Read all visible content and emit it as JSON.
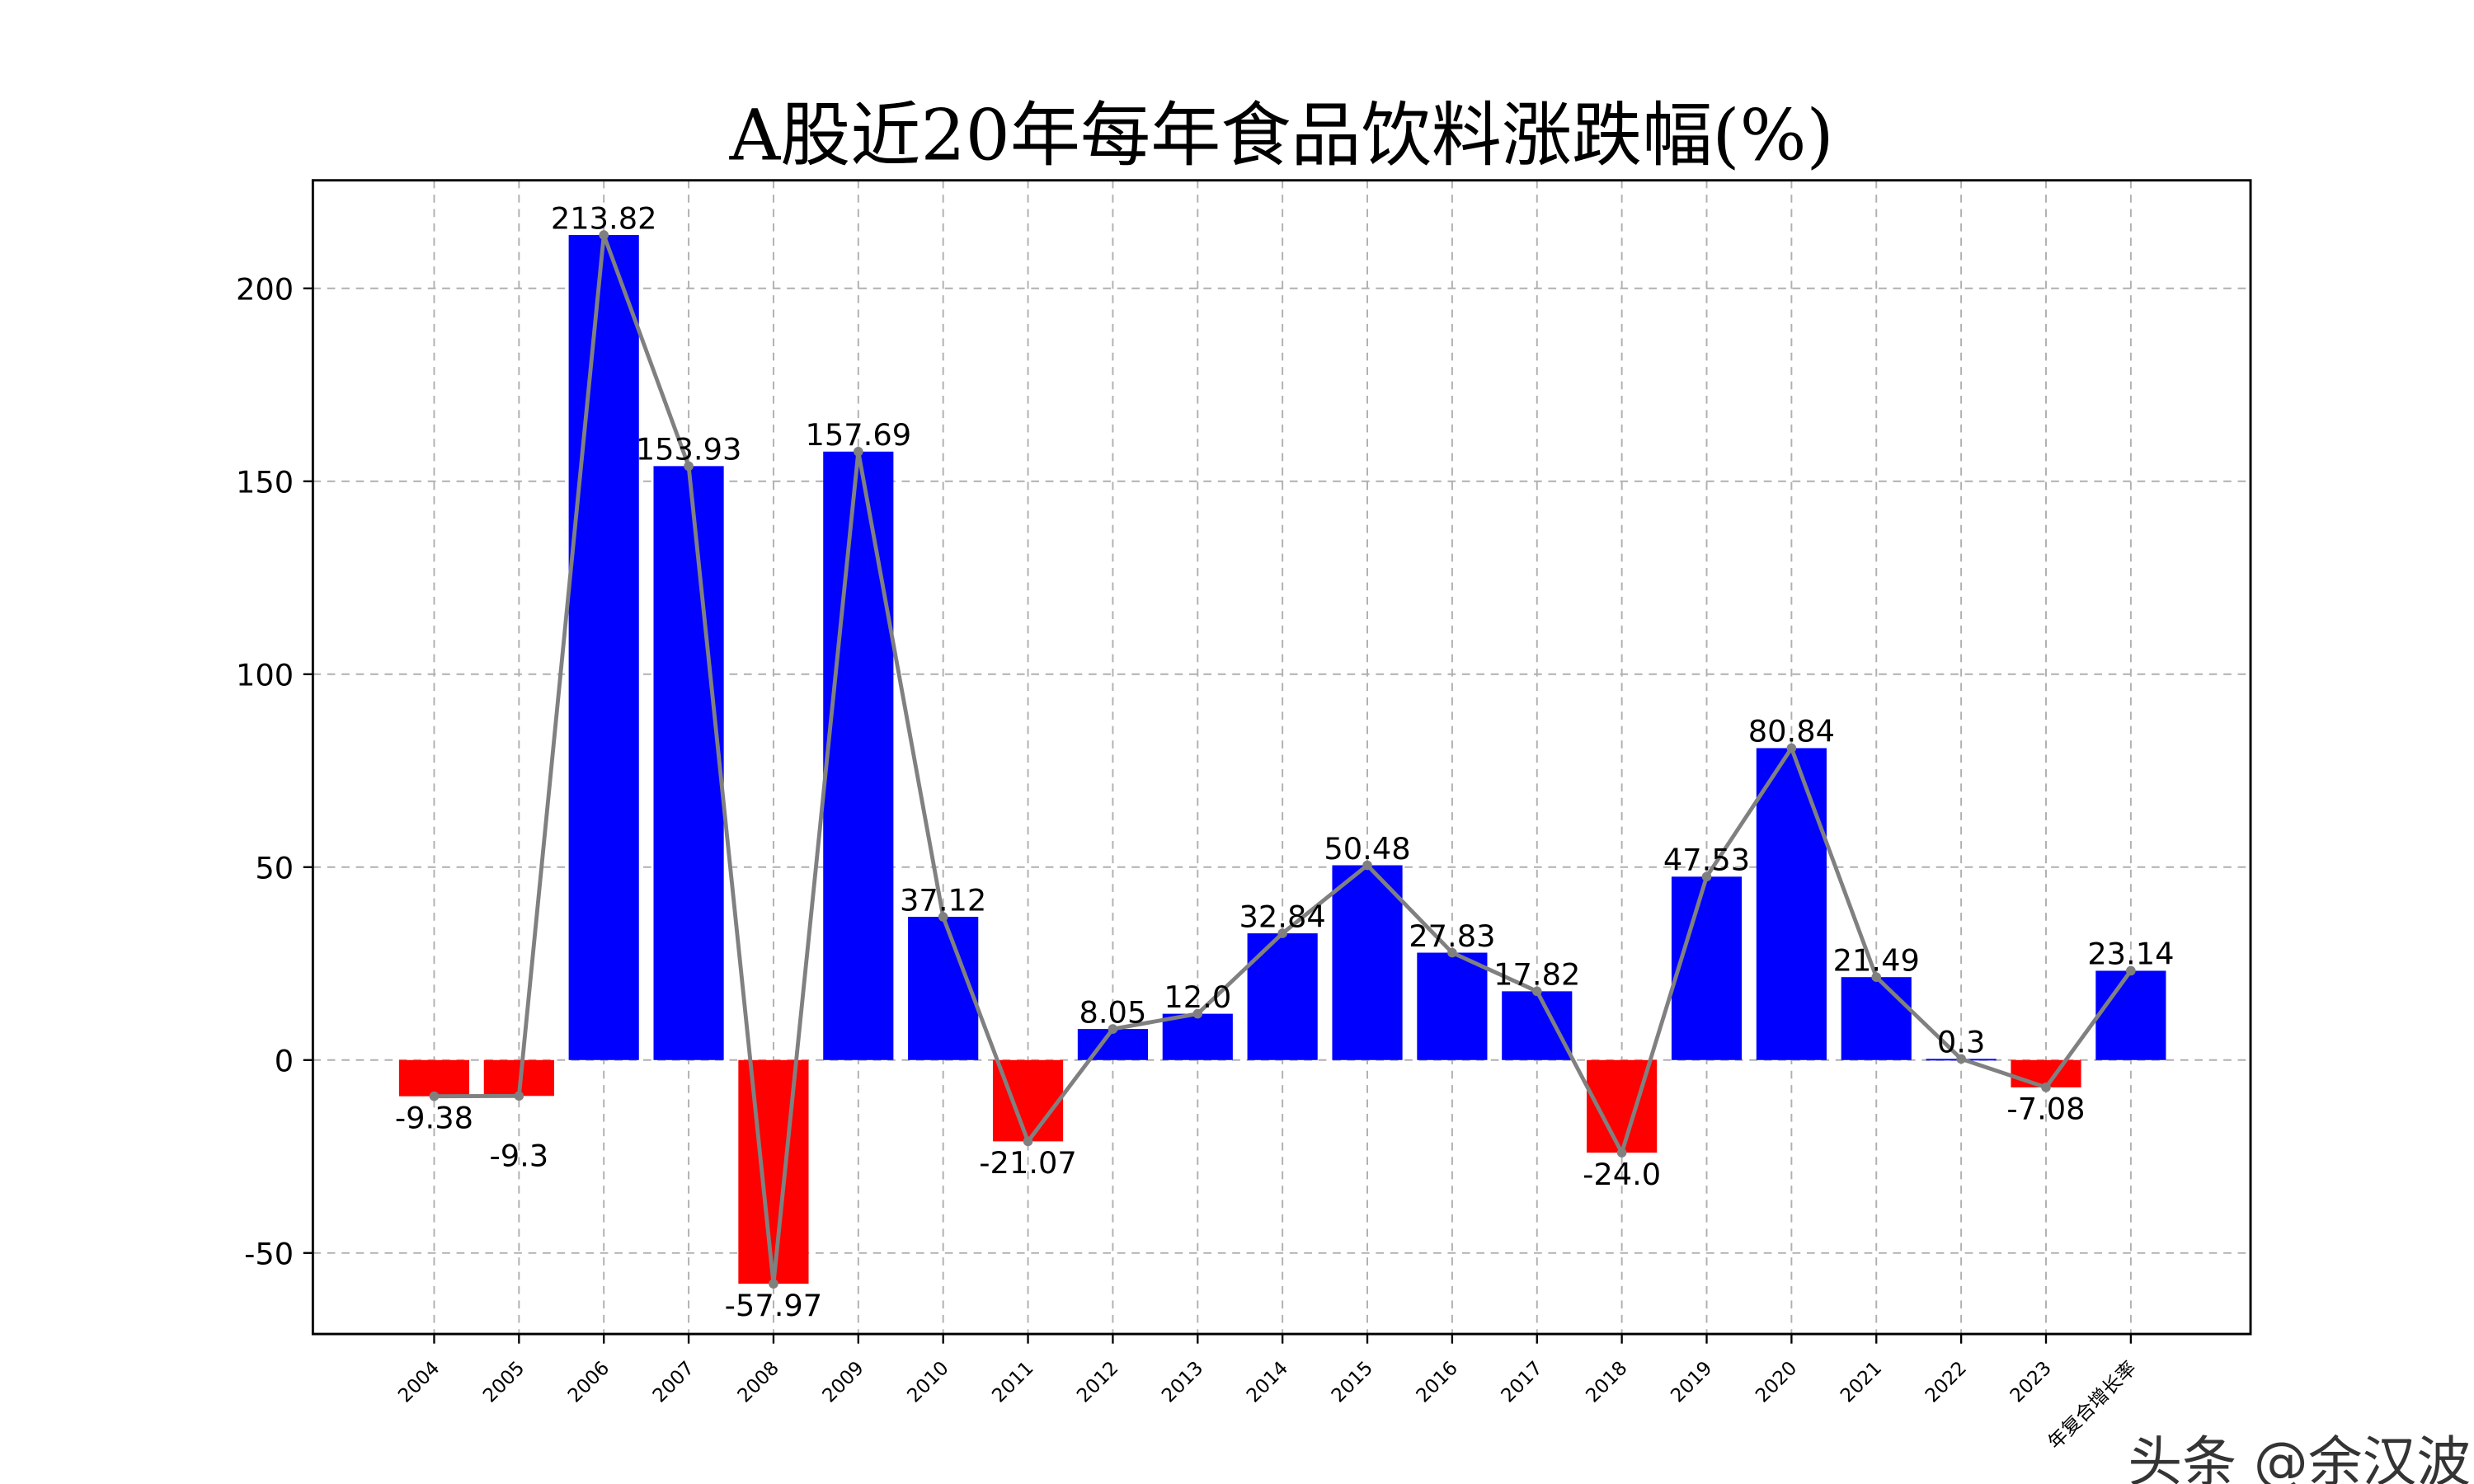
{
  "chart_data": {
    "type": "bar",
    "title": "A股近20年每年食品饮料涨跌幅(%)",
    "xlabel": "",
    "ylabel": "",
    "categories": [
      "2004",
      "2005",
      "2006",
      "2007",
      "2008",
      "2009",
      "2010",
      "2011",
      "2012",
      "2013",
      "2014",
      "2015",
      "2016",
      "2017",
      "2018",
      "2019",
      "2020",
      "2021",
      "2022",
      "2023",
      "年复合增长率"
    ],
    "values": [
      -9.38,
      -9.3,
      213.82,
      153.93,
      -57.97,
      157.69,
      37.12,
      -21.07,
      8.05,
      12.0,
      32.84,
      50.48,
      27.83,
      17.82,
      -24.0,
      47.53,
      80.84,
      21.49,
      0.3,
      -7.08,
      23.14
    ],
    "data_labels": [
      "-9.38",
      "-9.3",
      "213.82",
      "153.93",
      "-57.97",
      "157.69",
      "37.12",
      "-21.07",
      "8.05",
      "12.0",
      "32.84",
      "50.48",
      "27.83",
      "17.82",
      "-24.0",
      "47.53",
      "80.84",
      "21.49",
      "0.3",
      "-7.08",
      "23.14"
    ],
    "overlay_line": {
      "type": "line",
      "color": "#808080",
      "markers": true
    },
    "ylim": [
      -71,
      228
    ],
    "yticks": [
      -50,
      0,
      50,
      100,
      150,
      200
    ],
    "grid": true,
    "colors": {
      "positive": "#0000ff",
      "negative": "#ff0000",
      "grid": "#b0b0b0"
    }
  },
  "watermark": "头条 @余汉波"
}
